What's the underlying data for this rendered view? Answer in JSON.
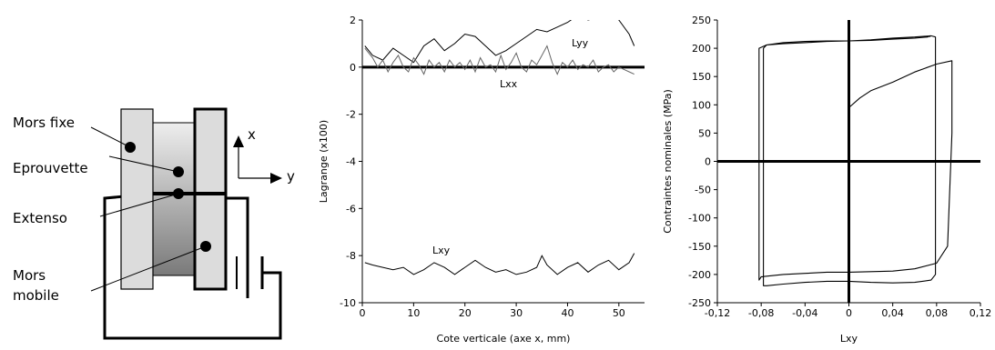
{
  "diagram": {
    "labels": {
      "mors_fixe": "Mors fixe",
      "eprouvette": "Eprouvette",
      "extenso": "Extenso",
      "mors_mobile_line1": "Mors",
      "mors_mobile_line2": "mobile",
      "axis_x": "x",
      "axis_y": "y"
    }
  },
  "chart_data": [
    {
      "type": "line",
      "xlabel": "Cote verticale (axe x, mm)",
      "ylabel": "Lagrange (x100)",
      "xlim": [
        0,
        55
      ],
      "ylim": [
        -10,
        2
      ],
      "xticks": [
        0,
        10,
        20,
        30,
        40,
        50
      ],
      "yticks": [
        -10,
        -8,
        -6,
        -4,
        -2,
        0,
        2
      ],
      "grid": false,
      "series": [
        {
          "name": "Lyy",
          "color": "#000000",
          "x": [
            0.5,
            2,
            4,
            6,
            8,
            10,
            12,
            14,
            16,
            18,
            20,
            22,
            24,
            26,
            28,
            30,
            32,
            34,
            36,
            38,
            40,
            42,
            44,
            46,
            48,
            50,
            52,
            53
          ],
          "y": [
            0.9,
            0.5,
            0.3,
            0.8,
            0.5,
            0.2,
            0.9,
            1.2,
            0.7,
            1.0,
            1.4,
            1.3,
            0.9,
            0.5,
            0.7,
            1.0,
            1.3,
            1.6,
            1.5,
            1.7,
            1.9,
            2.2,
            2.0,
            2.1,
            2.4,
            2.0,
            1.4,
            0.9
          ]
        },
        {
          "name": "Lxx",
          "color": "#666666",
          "x": [
            0.5,
            2,
            3,
            4,
            5,
            6,
            7,
            8,
            9,
            10,
            11,
            12,
            13,
            14,
            15,
            16,
            17,
            18,
            19,
            20,
            21,
            22,
            23,
            24,
            25,
            26,
            27,
            28,
            29,
            30,
            31,
            32,
            33,
            34,
            35,
            36,
            37,
            38,
            39,
            40,
            41,
            42,
            43,
            44,
            45,
            46,
            47,
            48,
            49,
            50,
            51,
            52,
            53
          ],
          "y": [
            0.8,
            0.4,
            0.0,
            0.3,
            -0.2,
            0.2,
            0.5,
            0.0,
            -0.2,
            0.4,
            0.1,
            -0.3,
            0.3,
            0.0,
            0.2,
            -0.2,
            0.3,
            0.0,
            0.2,
            -0.1,
            0.3,
            -0.2,
            0.4,
            0.0,
            0.1,
            -0.2,
            0.5,
            -0.1,
            0.2,
            0.6,
            0.0,
            -0.2,
            0.3,
            0.1,
            0.5,
            0.9,
            0.2,
            -0.3,
            0.2,
            0.0,
            0.3,
            -0.1,
            0.1,
            0.0,
            0.3,
            -0.2,
            0.0,
            0.1,
            -0.2,
            0.0,
            -0.1,
            -0.2,
            -0.3
          ]
        },
        {
          "name": "Lxy",
          "color": "#000000",
          "x": [
            0.5,
            2,
            4,
            6,
            8,
            10,
            12,
            14,
            16,
            18,
            20,
            22,
            24,
            26,
            28,
            30,
            32,
            34,
            35,
            36,
            38,
            40,
            42,
            44,
            46,
            48,
            50,
            52,
            53
          ],
          "y": [
            -8.3,
            -8.4,
            -8.5,
            -8.6,
            -8.5,
            -8.8,
            -8.6,
            -8.3,
            -8.5,
            -8.8,
            -8.5,
            -8.2,
            -8.5,
            -8.7,
            -8.6,
            -8.8,
            -8.7,
            -8.5,
            -8.0,
            -8.4,
            -8.8,
            -8.5,
            -8.3,
            -8.7,
            -8.4,
            -8.2,
            -8.6,
            -8.3,
            -7.9
          ]
        }
      ]
    },
    {
      "type": "line",
      "xlabel": "Lxy",
      "ylabel": "Contraintes nominales (MPa)",
      "xlim": [
        -0.12,
        0.12
      ],
      "ylim": [
        -250,
        250
      ],
      "xticks": [
        "-0,12",
        "-0,08",
        "-0,04",
        "0",
        "0,04",
        "0,08",
        "0,12"
      ],
      "yticks": [
        "-250",
        "-200",
        "-150",
        "-100",
        "-50",
        "0",
        "50",
        "100",
        "150",
        "200",
        "250"
      ],
      "grid": false,
      "series": [
        {
          "name": "",
          "color": "#000000",
          "x": [
            0.0,
            0.0,
            0.01,
            0.02,
            0.04,
            0.06,
            0.08,
            0.094,
            0.094,
            0.09,
            0.08,
            0.06,
            0.04,
            0.02,
            0.0,
            -0.02,
            -0.04,
            -0.06,
            -0.08,
            -0.082,
            -0.082,
            -0.075,
            -0.06,
            -0.04,
            -0.02,
            0.0,
            0.02,
            0.04,
            0.06,
            0.075,
            0.079,
            0.079,
            0.075,
            0.06,
            0.04,
            0.02,
            0.0,
            -0.02,
            -0.04,
            -0.06,
            -0.075,
            -0.078,
            -0.078,
            -0.075,
            -0.06,
            -0.04,
            -0.02,
            0.0,
            0.02,
            0.04,
            0.06,
            0.072,
            0.074,
            0.074
          ],
          "y": [
            85,
            95,
            112,
            125,
            140,
            158,
            172,
            178,
            50,
            -150,
            -180,
            -190,
            -194,
            -195,
            -196,
            -196,
            -198,
            -200,
            -204,
            -210,
            200,
            206,
            208,
            210,
            212,
            213,
            215,
            218,
            220,
            222,
            220,
            -200,
            -210,
            -214,
            -215,
            -214,
            -212,
            -212,
            -214,
            -217,
            -220,
            -220,
            200,
            206,
            210,
            212,
            213,
            213,
            214,
            216,
            218,
            220,
            222,
            220
          ]
        }
      ]
    }
  ]
}
